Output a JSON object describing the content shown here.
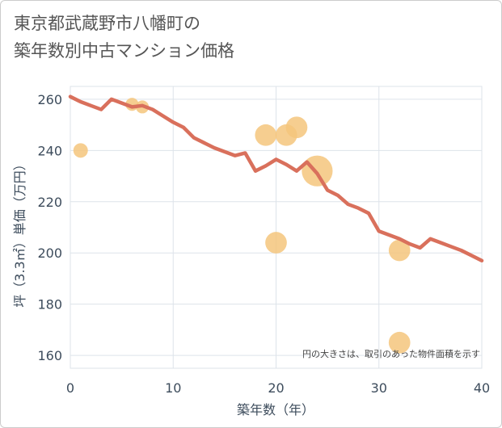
{
  "title": {
    "line1": "東京都武蔵野市八幡町の",
    "line2": "築年数別中古マンション価格"
  },
  "chart_data": {
    "type": "line",
    "xlabel": "築年数（年）",
    "ylabel": "坪（3.3㎡）単価（万円）",
    "xlim": [
      0,
      40
    ],
    "ylim": [
      155,
      265
    ],
    "xticks": [
      0,
      10,
      20,
      30,
      40
    ],
    "yticks": [
      160,
      180,
      200,
      220,
      240,
      260
    ],
    "grid": true,
    "note": "円の大きさは、取引のあった物件面積を示す",
    "line": {
      "color": "#d9705c",
      "x": [
        0,
        1,
        2,
        3,
        4,
        5,
        6,
        7,
        8,
        9,
        10,
        11,
        12,
        13,
        14,
        15,
        16,
        17,
        18,
        19,
        20,
        21,
        22,
        23,
        24,
        25,
        26,
        27,
        28,
        29,
        30,
        31,
        32,
        33,
        34,
        35,
        36,
        37,
        38,
        39,
        40
      ],
      "y": [
        261,
        259,
        257.5,
        256,
        260,
        258.5,
        257,
        257.5,
        256,
        253.5,
        251,
        249,
        245,
        243,
        241,
        239.5,
        238,
        239,
        232,
        234,
        236.5,
        234.5,
        232,
        235.5,
        231,
        224.5,
        222.5,
        219,
        217.5,
        215.5,
        208.5,
        207,
        205.5,
        203.5,
        202,
        205.5,
        204,
        202.5,
        201,
        199,
        197
      ]
    },
    "bubbles": {
      "color": "#f5c57d",
      "points": [
        {
          "x": 1,
          "y": 240,
          "size": 1
        },
        {
          "x": 6,
          "y": 258,
          "size": 0.8
        },
        {
          "x": 7,
          "y": 257,
          "size": 0.8
        },
        {
          "x": 19,
          "y": 246,
          "size": 2.2
        },
        {
          "x": 20,
          "y": 204,
          "size": 2.2
        },
        {
          "x": 21,
          "y": 246,
          "size": 2.2
        },
        {
          "x": 22,
          "y": 249,
          "size": 2.2
        },
        {
          "x": 24,
          "y": 232,
          "size": 4.5
        },
        {
          "x": 32,
          "y": 201,
          "size": 2.2
        },
        {
          "x": 32,
          "y": 165,
          "size": 2.2
        }
      ]
    }
  }
}
